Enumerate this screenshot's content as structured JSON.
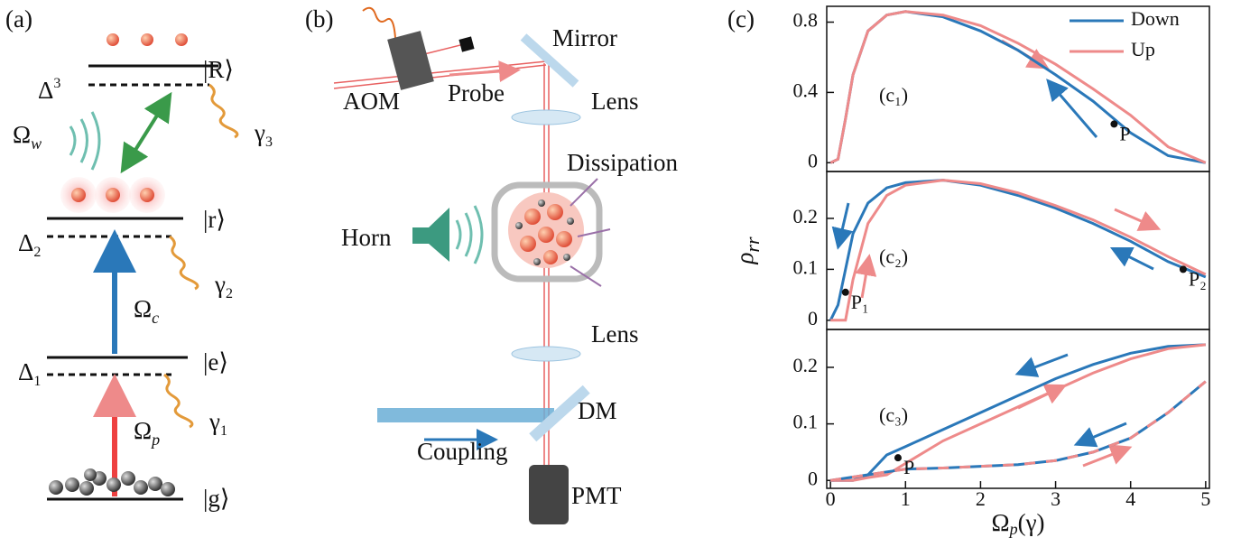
{
  "panels": {
    "a": {
      "label": "(a)",
      "states": [
        "|R⟩",
        "|r⟩",
        "|e⟩",
        "|g⟩"
      ],
      "detunings": [
        {
          "symbol": "Δ",
          "sub": "3"
        },
        {
          "symbol": "Δ",
          "sub": "2"
        },
        {
          "symbol": "Δ",
          "sub": "1"
        }
      ],
      "fields": [
        {
          "symbol": "Ω",
          "sub": "w"
        },
        {
          "symbol": "Ω",
          "sub": "c"
        },
        {
          "symbol": "Ω",
          "sub": "p"
        }
      ],
      "decays": [
        {
          "symbol": "γ",
          "sub": "3"
        },
        {
          "symbol": "γ",
          "sub": "2"
        },
        {
          "symbol": "γ",
          "sub": "1"
        }
      ]
    },
    "b": {
      "label": "(b)",
      "labels": [
        "Mirror",
        "AOM",
        "Probe",
        "Lens",
        "Dissipation",
        "Horn",
        "Lens",
        "DM",
        "Coupling",
        "PMT"
      ]
    },
    "c": {
      "label": "(c)"
    }
  },
  "chart_data": [
    {
      "type": "line",
      "annotation": "(c₁)",
      "legend": "upper right",
      "x": [
        0,
        0.1,
        0.2,
        0.3,
        0.5,
        0.75,
        1,
        1.5,
        2,
        2.5,
        3,
        3.5,
        4,
        4.5,
        5
      ],
      "series": [
        {
          "name": "Down",
          "color": "#2a78b9",
          "values": [
            0,
            0.02,
            0.25,
            0.5,
            0.75,
            0.84,
            0.86,
            0.83,
            0.75,
            0.64,
            0.5,
            0.35,
            0.17,
            0.04,
            0
          ]
        },
        {
          "name": "Up",
          "color": "#ee8a8a",
          "values": [
            0,
            0.02,
            0.25,
            0.5,
            0.75,
            0.84,
            0.86,
            0.84,
            0.78,
            0.68,
            0.56,
            0.42,
            0.27,
            0.09,
            0
          ]
        }
      ],
      "xlim": [
        -0.05,
        5.05
      ],
      "ylim": [
        -0.05,
        0.89
      ],
      "yticks": [
        0,
        0.4,
        0.8
      ],
      "points": [
        {
          "label": "P",
          "x": 3.78,
          "y": 0.22
        }
      ]
    },
    {
      "type": "line",
      "annotation": "(c₂)",
      "y_label": {
        "symbol": "ρ",
        "sub": "rr"
      },
      "x": [
        0,
        0.1,
        0.2,
        0.3,
        0.5,
        0.75,
        1,
        1.5,
        2,
        2.5,
        3,
        3.5,
        4,
        4.5,
        5
      ],
      "series": [
        {
          "name": "Down",
          "color": "#2a78b9",
          "values": [
            0,
            0.03,
            0.1,
            0.17,
            0.23,
            0.26,
            0.27,
            0.275,
            0.265,
            0.245,
            0.22,
            0.19,
            0.155,
            0.115,
            0.085
          ]
        },
        {
          "name": "Up",
          "color": "#ee8a8a",
          "values": [
            0,
            0,
            0,
            0.08,
            0.19,
            0.245,
            0.265,
            0.275,
            0.268,
            0.25,
            0.225,
            0.197,
            0.163,
            0.125,
            0.09
          ]
        }
      ],
      "xlim": [
        -0.05,
        5.05
      ],
      "ylim": [
        -0.018,
        0.292
      ],
      "yticks": [
        0,
        0.1,
        0.2
      ],
      "points": [
        {
          "label": "P₁",
          "x": 0.2,
          "y": 0.055
        },
        {
          "label": "P₂",
          "x": 4.7,
          "y": 0.1
        }
      ]
    },
    {
      "type": "line",
      "annotation": "(c₃)",
      "x_label": {
        "symbol": "Ω",
        "sub": "p",
        "unit": "(γ)"
      },
      "x": [
        0,
        0.1,
        0.2,
        0.3,
        0.5,
        0.75,
        1,
        1.5,
        2,
        2.5,
        3,
        3.5,
        4,
        4.5,
        5
      ],
      "series": [
        {
          "name": "Down",
          "color": "#2a78b9",
          "values": [
            0,
            0,
            0,
            0,
            0.01,
            0.045,
            0.06,
            0.09,
            0.12,
            0.15,
            0.18,
            0.205,
            0.225,
            0.237,
            0.24
          ]
        },
        {
          "name": "Up",
          "color": "#ee8a8a",
          "values": [
            0,
            0,
            0,
            0,
            0.005,
            0.01,
            0.03,
            0.07,
            0.1,
            0.13,
            0.16,
            0.19,
            0.215,
            0.233,
            0.24
          ]
        },
        {
          "name": "Down",
          "color": "#2a78b9",
          "values": [
            0,
            0.002,
            0.004,
            0.006,
            0.01,
            0.015,
            0.02,
            0.022,
            0.025,
            0.028,
            0.035,
            0.05,
            0.075,
            0.12,
            0.175
          ]
        },
        {
          "name": "Up",
          "color": "#ee8a8a",
          "dashed": true,
          "values": [
            0,
            0.002,
            0.004,
            0.006,
            0.01,
            0.015,
            0.02,
            0.022,
            0.025,
            0.028,
            0.035,
            0.05,
            0.075,
            0.12,
            0.175
          ]
        }
      ],
      "xlim": [
        -0.05,
        5.05
      ],
      "xticks": [
        0,
        1,
        2,
        3,
        4,
        5
      ],
      "ylim": [
        -0.014,
        0.267
      ],
      "yticks": [
        0,
        0.1,
        0.2
      ],
      "points": [
        {
          "label": "P",
          "x": 0.9,
          "y": 0.04
        }
      ]
    }
  ]
}
